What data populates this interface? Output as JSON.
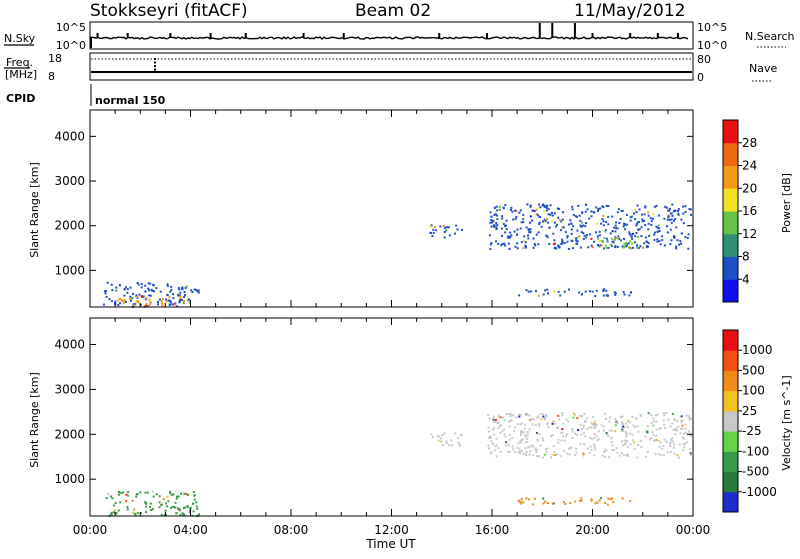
{
  "header": {
    "station": "Stokkseyri (fitACF)",
    "beam": "Beam 02",
    "date": "11/May/2012"
  },
  "strip_labels": {
    "nsky": "N.Sky",
    "freq_line1": "Freq.",
    "freq_line2": "[MHz]",
    "cpid": "CPID",
    "nsearch": "N.Search",
    "nave": "Nave",
    "nsky_ticks": [
      "10^5",
      "10^0"
    ],
    "nsearch_ticks": [
      "10^5",
      "10^0"
    ],
    "freq_ticks": [
      "18",
      "8"
    ],
    "nave_ticks": [
      "80",
      "0"
    ],
    "cpid_value": "normal 150"
  },
  "chart_data": [
    {
      "type": "heatmap",
      "name": "power",
      "ylabel": "Slant Range [km]",
      "xlabel": "",
      "ylim": [
        180,
        4590
      ],
      "xlim_hours": [
        0,
        24
      ],
      "yticks": [
        1000,
        2000,
        3000,
        4000
      ],
      "colorbar": {
        "label": "Power [dB]",
        "tick_labels": [
          "4",
          "8",
          "12",
          "16",
          "20",
          "24",
          "28"
        ],
        "colors": [
          "#1010ee",
          "#1f4fc6",
          "#2f8f72",
          "#66c244",
          "#f2e225",
          "#f39a17",
          "#f16a10",
          "#e81010"
        ]
      },
      "regions": [
        {
          "t": [
            0.5,
            4.3
          ],
          "r": [
            200,
            750
          ],
          "color": "#1f4fc6",
          "note": "near-range scatter"
        },
        {
          "t": [
            1.0,
            3.8
          ],
          "r": [
            220,
            450
          ],
          "color": "#f39a17"
        },
        {
          "t": [
            13.5,
            14.8
          ],
          "r": [
            1750,
            2050
          ],
          "color": "#1f4fc6"
        },
        {
          "t": [
            15.8,
            23.9
          ],
          "r": [
            1500,
            2500
          ],
          "color": "#1f4fc6"
        },
        {
          "t": [
            20.0,
            22.0
          ],
          "r": [
            1500,
            1800
          ],
          "color": "#66c244"
        },
        {
          "t": [
            17.0,
            21.5
          ],
          "r": [
            450,
            600
          ],
          "color": "#1f4fc6"
        }
      ]
    },
    {
      "type": "heatmap",
      "name": "velocity",
      "ylabel": "Slant Range [km]",
      "xlabel": "Time UT",
      "ylim": [
        180,
        4590
      ],
      "xlim_hours": [
        0,
        24
      ],
      "yticks": [
        1000,
        2000,
        3000,
        4000
      ],
      "xticks": [
        "00:00",
        "04:00",
        "08:00",
        "12:00",
        "16:00",
        "20:00",
        "00:00"
      ],
      "colorbar": {
        "label": "Velocity [m s^-1]",
        "tick_labels": [
          "1000",
          "500",
          "100",
          "25",
          "-25",
          "-100",
          "-500",
          "-1000"
        ],
        "colors": [
          "#1e2ecc",
          "#2a7a3a",
          "#3a9a4a",
          "#66d244",
          "#c8c8c8",
          "#f6c020",
          "#f08a18",
          "#f45010",
          "#e81010"
        ]
      },
      "regions": [
        {
          "t": [
            0.5,
            4.3
          ],
          "r": [
            200,
            750
          ],
          "color": "#3a9a4a",
          "note": "near-range scatter"
        },
        {
          "t": [
            13.5,
            14.8
          ],
          "r": [
            1750,
            2050
          ],
          "color": "#c8c8c8"
        },
        {
          "t": [
            15.8,
            23.9
          ],
          "r": [
            1500,
            2500
          ],
          "color": "#c8c8c8"
        },
        {
          "t": [
            17.0,
            21.5
          ],
          "r": [
            450,
            600
          ],
          "color": "#f08a18"
        }
      ]
    }
  ]
}
